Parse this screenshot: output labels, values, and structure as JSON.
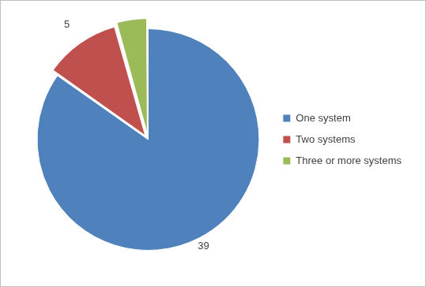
{
  "chart_data": {
    "type": "pie",
    "categories": [
      "One system",
      "Two systems",
      "Three or more systems"
    ],
    "values": [
      39,
      5,
      2
    ],
    "colors": [
      "#4f81bd",
      "#c0504d",
      "#9bbb59"
    ],
    "legend": "right",
    "data_labels": true
  }
}
